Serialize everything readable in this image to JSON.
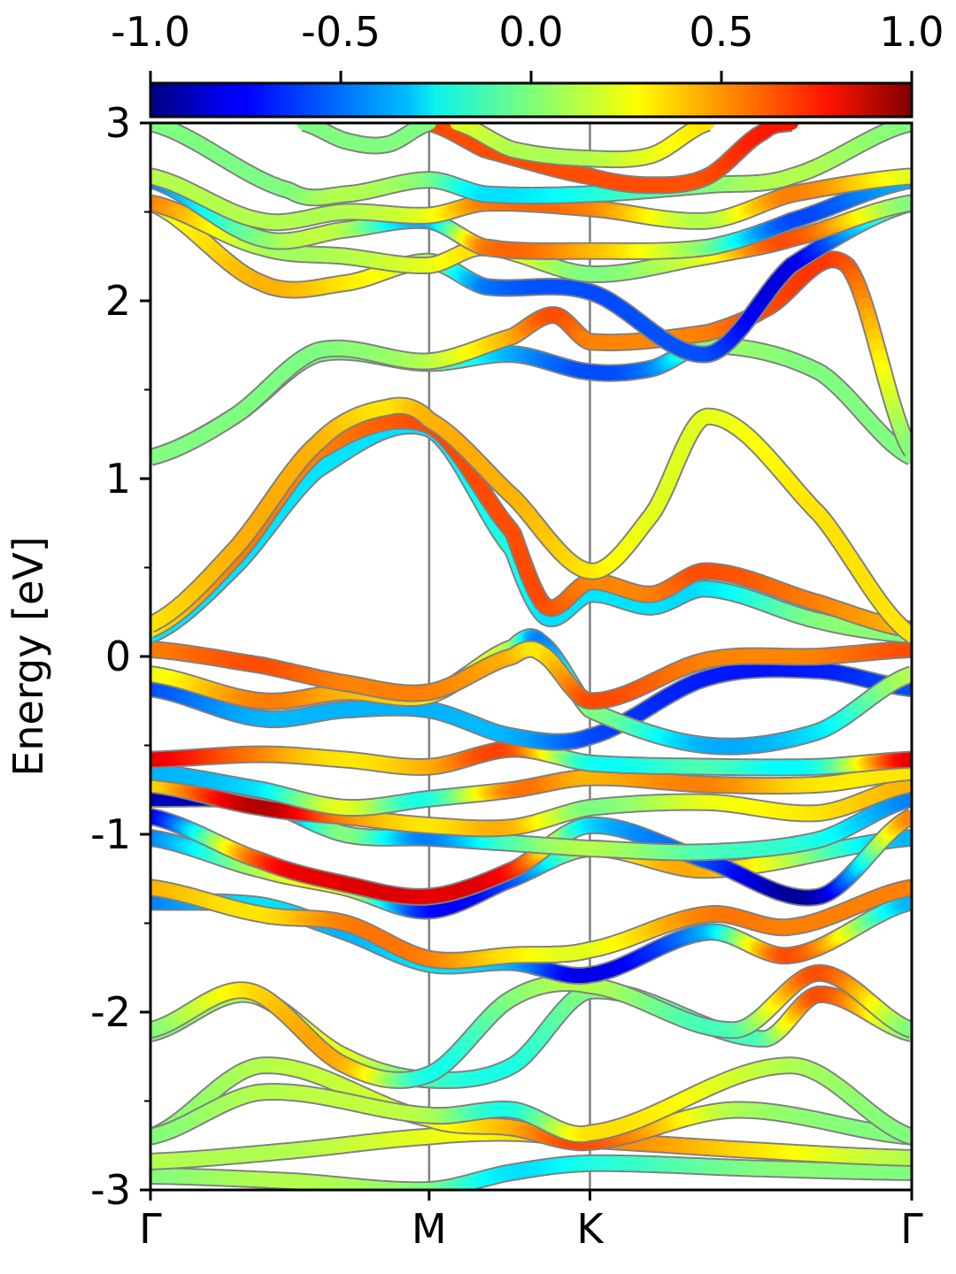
{
  "chart_data": {
    "type": "line",
    "ylabel": "Energy [eV]",
    "xlabel": "",
    "ylim": [
      -3,
      3
    ],
    "y_ticks": [
      "-3",
      "-2",
      "-1",
      "0",
      "1",
      "2",
      "3"
    ],
    "y_minor_ticks": [
      -2.5,
      -1.5,
      -0.5,
      0.5,
      1.5,
      2.5
    ],
    "k_path_labels": [
      "Γ",
      "M",
      "K",
      "Γ"
    ],
    "k_path_positions": [
      0,
      1,
      1.577,
      2.732
    ],
    "grid": "vertical lines at high-symmetry points",
    "colorbar": {
      "placement": "top",
      "colormap": "jet",
      "range": [
        -1.0,
        1.0
      ],
      "tick_labels": [
        "-1.0",
        "-0.5",
        "0.0",
        "0.5",
        "1.0"
      ]
    },
    "series": [
      {
        "k": [
          0,
          0.5,
          1,
          1.3,
          1.577,
          2.2,
          2.732
        ],
        "e": [
          -2.92,
          -2.95,
          -3.0,
          -2.9,
          -2.85,
          -2.88,
          -2.9
        ],
        "w": [
          0.0,
          0.1,
          0.0,
          -0.3,
          -0.2,
          0.0,
          0.0
        ]
      },
      {
        "k": [
          0,
          0.5,
          1,
          1.3,
          1.577,
          2.2,
          2.732
        ],
        "e": [
          -2.84,
          -2.78,
          -2.7,
          -2.68,
          -2.72,
          -2.78,
          -2.82
        ],
        "w": [
          0.1,
          0.1,
          0.2,
          0.3,
          0.5,
          0.3,
          0.1
        ]
      },
      {
        "k": [
          0,
          0.4,
          1,
          1.3,
          1.577,
          2.1,
          2.732
        ],
        "e": [
          -2.7,
          -2.3,
          -2.6,
          -2.65,
          -2.73,
          -2.55,
          -2.7
        ],
        "w": [
          0.0,
          0.1,
          0.2,
          0.4,
          0.6,
          0.1,
          0.0
        ]
      },
      {
        "k": [
          0,
          0.4,
          1,
          1.3,
          1.577,
          2.3,
          2.732
        ],
        "e": [
          -2.7,
          -2.45,
          -2.58,
          -2.55,
          -2.68,
          -2.3,
          -2.7
        ],
        "w": [
          0.0,
          0.1,
          0.1,
          -0.2,
          0.3,
          0.1,
          0.0
        ]
      },
      {
        "k": [
          0,
          0.35,
          0.7,
          1,
          1.3,
          1.577,
          2.2,
          2.4,
          2.732
        ],
        "e": [
          -2.12,
          -1.9,
          -2.25,
          -2.38,
          -2.3,
          -1.88,
          -2.15,
          -1.9,
          -2.12
        ],
        "w": [
          0.0,
          0.1,
          0.2,
          -0.1,
          -0.2,
          0.0,
          -0.1,
          0.6,
          0.0
        ]
      },
      {
        "k": [
          0,
          0.35,
          0.7,
          1,
          1.3,
          1.577,
          2.1,
          2.4,
          2.732
        ],
        "e": [
          -2.1,
          -1.88,
          -2.3,
          -2.35,
          -1.92,
          -1.85,
          -2.1,
          -1.78,
          -2.1
        ],
        "w": [
          0.0,
          0.3,
          0.4,
          -0.2,
          0.0,
          0.1,
          -0.1,
          0.6,
          0.0
        ]
      },
      {
        "k": [
          0,
          0.4,
          0.7,
          1,
          1.3,
          1.577,
          2.0,
          2.3,
          2.732
        ],
        "e": [
          -1.38,
          -1.4,
          -1.55,
          -1.73,
          -1.72,
          -1.79,
          -1.55,
          -1.68,
          -1.38
        ],
        "w": [
          -0.5,
          -0.3,
          -0.4,
          -0.3,
          -0.4,
          -0.8,
          -0.4,
          0.6,
          -0.4
        ]
      },
      {
        "k": [
          0,
          0.4,
          0.7,
          1,
          1.3,
          1.577,
          2.0,
          2.3,
          2.732
        ],
        "e": [
          -1.3,
          -1.45,
          -1.5,
          -1.7,
          -1.68,
          -1.65,
          -1.45,
          -1.52,
          -1.3
        ],
        "w": [
          0.4,
          0.3,
          0.5,
          0.5,
          0.3,
          0.2,
          0.5,
          0.5,
          0.5
        ]
      },
      {
        "k": [
          0,
          0.4,
          0.7,
          1,
          1.3,
          1.577,
          2.0,
          2.732
        ],
        "e": [
          -1.02,
          -1.2,
          -1.3,
          -1.43,
          -1.25,
          -1.08,
          -1.2,
          -1.02
        ],
        "w": [
          -0.5,
          0.1,
          0.2,
          -0.7,
          -0.6,
          0.1,
          0.4,
          -0.4
        ]
      },
      {
        "k": [
          0,
          0.4,
          0.7,
          1,
          1.3,
          1.577,
          2.0,
          2.4,
          2.732
        ],
        "e": [
          -0.9,
          -1.15,
          -1.28,
          -1.35,
          -1.2,
          -0.95,
          -1.15,
          -1.35,
          -0.9
        ],
        "w": [
          -0.8,
          0.6,
          0.8,
          0.8,
          0.7,
          -0.3,
          -0.6,
          -0.9,
          0.5
        ]
      },
      {
        "k": [
          0,
          0.4,
          0.7,
          1,
          1.3,
          1.577,
          2.0,
          2.4,
          2.732
        ],
        "e": [
          -0.8,
          -0.82,
          -1.0,
          -1.02,
          -1.05,
          -1.08,
          -1.1,
          -1.03,
          -0.8
        ],
        "w": [
          -0.9,
          -0.8,
          0.0,
          -0.5,
          -0.1,
          0.1,
          -0.1,
          -0.2,
          -0.5
        ]
      },
      {
        "k": [
          0,
          0.4,
          0.7,
          1,
          1.3,
          1.577,
          2.0,
          2.4,
          2.732
        ],
        "e": [
          -0.72,
          -0.85,
          -0.9,
          -0.95,
          -0.96,
          -0.85,
          -0.82,
          -0.88,
          -0.72
        ],
        "w": [
          0.3,
          0.9,
          0.5,
          0.3,
          0.4,
          0.0,
          0.2,
          0.3,
          0.4
        ]
      },
      {
        "k": [
          0,
          0.4,
          0.7,
          1,
          1.3,
          1.577,
          2.0,
          2.4,
          2.732
        ],
        "e": [
          -0.65,
          -0.75,
          -0.85,
          -0.8,
          -0.75,
          -0.68,
          -0.72,
          -0.72,
          -0.65
        ],
        "w": [
          -0.4,
          -0.3,
          0.2,
          -0.2,
          0.5,
          0.4,
          0.5,
          0.3,
          0.3
        ]
      },
      {
        "k": [
          0,
          0.4,
          0.7,
          1,
          1.3,
          1.577,
          2.0,
          2.4,
          2.732
        ],
        "e": [
          -0.58,
          -0.55,
          -0.58,
          -0.62,
          -0.52,
          -0.6,
          -0.62,
          -0.62,
          -0.58
        ],
        "w": [
          0.8,
          0.5,
          0.3,
          0.4,
          0.6,
          -0.2,
          -0.1,
          -0.2,
          0.8
        ]
      },
      {
        "k": [
          0,
          0.4,
          0.7,
          1,
          1.3,
          1.577,
          2.0,
          2.4,
          2.732
        ],
        "e": [
          -0.18,
          -0.35,
          -0.3,
          -0.3,
          -0.45,
          -0.45,
          -0.12,
          -0.08,
          -0.18
        ],
        "w": [
          -0.6,
          -0.4,
          -0.4,
          -0.4,
          -0.4,
          -0.6,
          -0.7,
          -0.7,
          -0.6
        ]
      },
      {
        "k": [
          0,
          0.4,
          0.7,
          1,
          1.3,
          1.4,
          1.577,
          2.0,
          2.4,
          2.732
        ],
        "e": [
          -0.1,
          -0.25,
          -0.2,
          -0.22,
          0.05,
          0.08,
          -0.3,
          -0.5,
          -0.42,
          -0.1
        ],
        "w": [
          0.2,
          0.5,
          0.4,
          0.3,
          0.1,
          -0.5,
          0.0,
          -0.4,
          -0.3,
          0.1
        ]
      },
      {
        "k": [
          0,
          0.4,
          0.7,
          1,
          1.3,
          1.4,
          1.577,
          2.0,
          2.4,
          2.732
        ],
        "e": [
          0.04,
          -0.05,
          -0.15,
          -0.2,
          0.0,
          0.02,
          -0.25,
          -0.02,
          0.0,
          0.04
        ],
        "w": [
          0.5,
          0.6,
          0.5,
          0.5,
          0.4,
          0.3,
          0.6,
          0.5,
          0.5,
          0.6
        ]
      },
      {
        "k": [
          0,
          0.3,
          0.6,
          1,
          1.3,
          1.42,
          1.577,
          1.8,
          2.0,
          2.4,
          2.732
        ],
        "e": [
          0.12,
          0.5,
          1.05,
          1.28,
          0.6,
          0.22,
          0.35,
          0.28,
          0.38,
          0.2,
          0.12
        ],
        "w": [
          -0.3,
          -0.3,
          -0.3,
          -0.3,
          -0.2,
          -0.3,
          -0.3,
          -0.3,
          -0.3,
          0.0,
          0.0
        ]
      },
      {
        "k": [
          0,
          0.3,
          0.6,
          1,
          1.3,
          1.42,
          1.577,
          1.8,
          2.0,
          2.4,
          2.732
        ],
        "e": [
          0.15,
          0.55,
          1.15,
          1.3,
          0.7,
          0.28,
          0.42,
          0.35,
          0.48,
          0.3,
          0.15
        ],
        "w": [
          0.3,
          0.5,
          0.5,
          0.6,
          0.6,
          0.6,
          0.5,
          0.5,
          0.6,
          0.5,
          0.4
        ]
      },
      {
        "k": [
          0,
          0.3,
          0.6,
          0.85,
          1,
          1.3,
          1.577,
          1.8,
          2.0,
          2.4,
          2.732
        ],
        "e": [
          0.18,
          0.6,
          1.2,
          1.4,
          1.33,
          0.9,
          0.48,
          0.8,
          1.35,
          0.8,
          0.12
        ],
        "w": [
          0.3,
          0.4,
          0.4,
          0.3,
          0.4,
          0.4,
          0.3,
          0.2,
          0.2,
          0.3,
          0.3
        ]
      },
      {
        "k": [
          0,
          0.3,
          0.6,
          1,
          1.3,
          1.577,
          1.8,
          2.0,
          2.4,
          2.732
        ],
        "e": [
          1.12,
          1.35,
          1.7,
          1.65,
          1.7,
          1.6,
          1.62,
          1.75,
          1.6,
          1.12
        ],
        "w": [
          0.0,
          0.0,
          0.0,
          0.0,
          -0.4,
          -0.6,
          -0.5,
          0.0,
          0.0,
          0.0
        ]
      },
      {
        "k": [
          0,
          0.3,
          0.6,
          1,
          1.3,
          1.45,
          1.577,
          2.0,
          2.2,
          2.5,
          2.732
        ],
        "e": [
          1.12,
          1.35,
          1.72,
          1.66,
          1.8,
          1.92,
          1.77,
          1.82,
          1.95,
          2.2,
          1.15
        ],
        "w": [
          0.0,
          0.0,
          0.0,
          0.1,
          0.4,
          0.6,
          0.5,
          0.5,
          0.6,
          0.6,
          0.0
        ]
      },
      {
        "k": [
          0,
          0.4,
          0.7,
          1,
          1.2,
          1.577,
          2.0,
          2.3,
          2.732
        ],
        "e": [
          2.55,
          2.1,
          2.1,
          2.22,
          2.08,
          2.05,
          1.7,
          2.2,
          2.55
        ],
        "w": [
          0.2,
          0.4,
          0.3,
          0.1,
          -0.5,
          -0.6,
          -0.6,
          -0.8,
          0.0
        ]
      },
      {
        "k": [
          0,
          0.4,
          0.7,
          1,
          1.2,
          1.577,
          2.0,
          2.3,
          2.732
        ],
        "e": [
          2.55,
          2.3,
          2.25,
          2.2,
          2.3,
          2.15,
          2.25,
          2.35,
          2.55
        ],
        "w": [
          0.5,
          0.1,
          0.1,
          0.2,
          0.3,
          0.0,
          0.2,
          0.6,
          0.0
        ]
      },
      {
        "k": [
          0,
          0.4,
          0.7,
          1,
          1.2,
          1.577,
          2.0,
          2.3,
          2.732
        ],
        "e": [
          2.68,
          2.35,
          2.4,
          2.45,
          2.3,
          2.28,
          2.3,
          2.45,
          2.68
        ],
        "w": [
          -0.5,
          0.0,
          0.1,
          -0.4,
          0.5,
          0.4,
          0.0,
          -0.6,
          -0.4
        ]
      },
      {
        "k": [
          0,
          0.4,
          0.7,
          1,
          1.2,
          1.577,
          2.0,
          2.3,
          2.732
        ],
        "e": [
          2.7,
          2.45,
          2.5,
          2.48,
          2.55,
          2.52,
          2.45,
          2.6,
          2.7
        ],
        "w": [
          0.1,
          0.1,
          0.1,
          0.2,
          0.5,
          0.5,
          0.1,
          0.5,
          0.2
        ]
      },
      {
        "k": [
          0,
          0.5,
          0.7,
          1,
          1.2,
          1.577,
          2.0,
          2.3,
          2.732
        ],
        "e": [
          3.0,
          2.62,
          2.6,
          2.68,
          2.6,
          2.6,
          2.65,
          2.7,
          3.0
        ],
        "w": [
          0.0,
          0.0,
          0.1,
          0.0,
          -0.3,
          -0.2,
          0.0,
          0.1,
          0.0
        ]
      },
      {
        "k": [
          1.0,
          1.2,
          1.577,
          1.8,
          2.0,
          2.2,
          2.3
        ],
        "e": [
          3.0,
          2.85,
          2.7,
          2.65,
          2.7,
          2.95,
          3.0
        ],
        "w": [
          0.6,
          0.6,
          0.6,
          0.6,
          0.6,
          0.7,
          0.7
        ]
      },
      {
        "k": [
          0.55,
          0.7,
          0.85,
          1.0
        ],
        "e": [
          3.0,
          2.9,
          2.88,
          3.0
        ],
        "w": [
          0.0,
          0.0,
          0.0,
          0.0
        ]
      },
      {
        "k": [
          1.1,
          1.3,
          1.577,
          1.8,
          2.0
        ],
        "e": [
          3.0,
          2.85,
          2.8,
          2.82,
          3.0
        ],
        "w": [
          0.2,
          0.1,
          0.1,
          0.2,
          0.3
        ]
      }
    ]
  }
}
